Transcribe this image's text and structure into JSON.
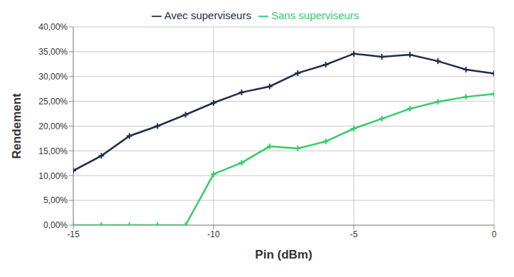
{
  "chart_data": {
    "type": "line",
    "x_label": "Pin (dBm)",
    "y_label": "Rendement",
    "x": [
      -15,
      -14,
      -13,
      -12,
      -11,
      -10,
      -9,
      -8,
      -7,
      -6,
      -5,
      -4,
      -3,
      -2,
      -1,
      0
    ],
    "series": [
      {
        "name": "Avec superviseurs",
        "color": "#1f2d4d",
        "marker": "plus",
        "values": [
          11,
          14,
          18,
          20,
          22.3,
          24.7,
          26.8,
          28,
          30.7,
          32.4,
          34.6,
          34,
          34.4,
          33.1,
          31.4,
          30.6
        ]
      },
      {
        "name": "Sans superviseurs",
        "color": "#33cc66",
        "marker": "plus",
        "values": [
          0,
          0,
          0,
          0,
          0,
          10.3,
          12.6,
          15.9,
          15.5,
          16.9,
          19.5,
          21.5,
          23.5,
          24.9,
          25.9,
          26.5
        ]
      }
    ],
    "xlim": [
      -15,
      0
    ],
    "xticks": [
      -15,
      -10,
      -5,
      0
    ],
    "ylim": [
      0,
      40
    ],
    "yticks": [
      {
        "value": 0,
        "label": "0,00%"
      },
      {
        "value": 5,
        "label": "5,00%"
      },
      {
        "value": 10,
        "label": "10,00%"
      },
      {
        "value": 15,
        "label": "15,00%"
      },
      {
        "value": 20,
        "label": "20,00%"
      },
      {
        "value": 25,
        "label": "25,00%"
      },
      {
        "value": 30,
        "label": "30,00%"
      },
      {
        "value": 35,
        "label": "35,00%"
      },
      {
        "value": 40,
        "label": "40,00%"
      }
    ],
    "grid": true,
    "legend": "top"
  }
}
